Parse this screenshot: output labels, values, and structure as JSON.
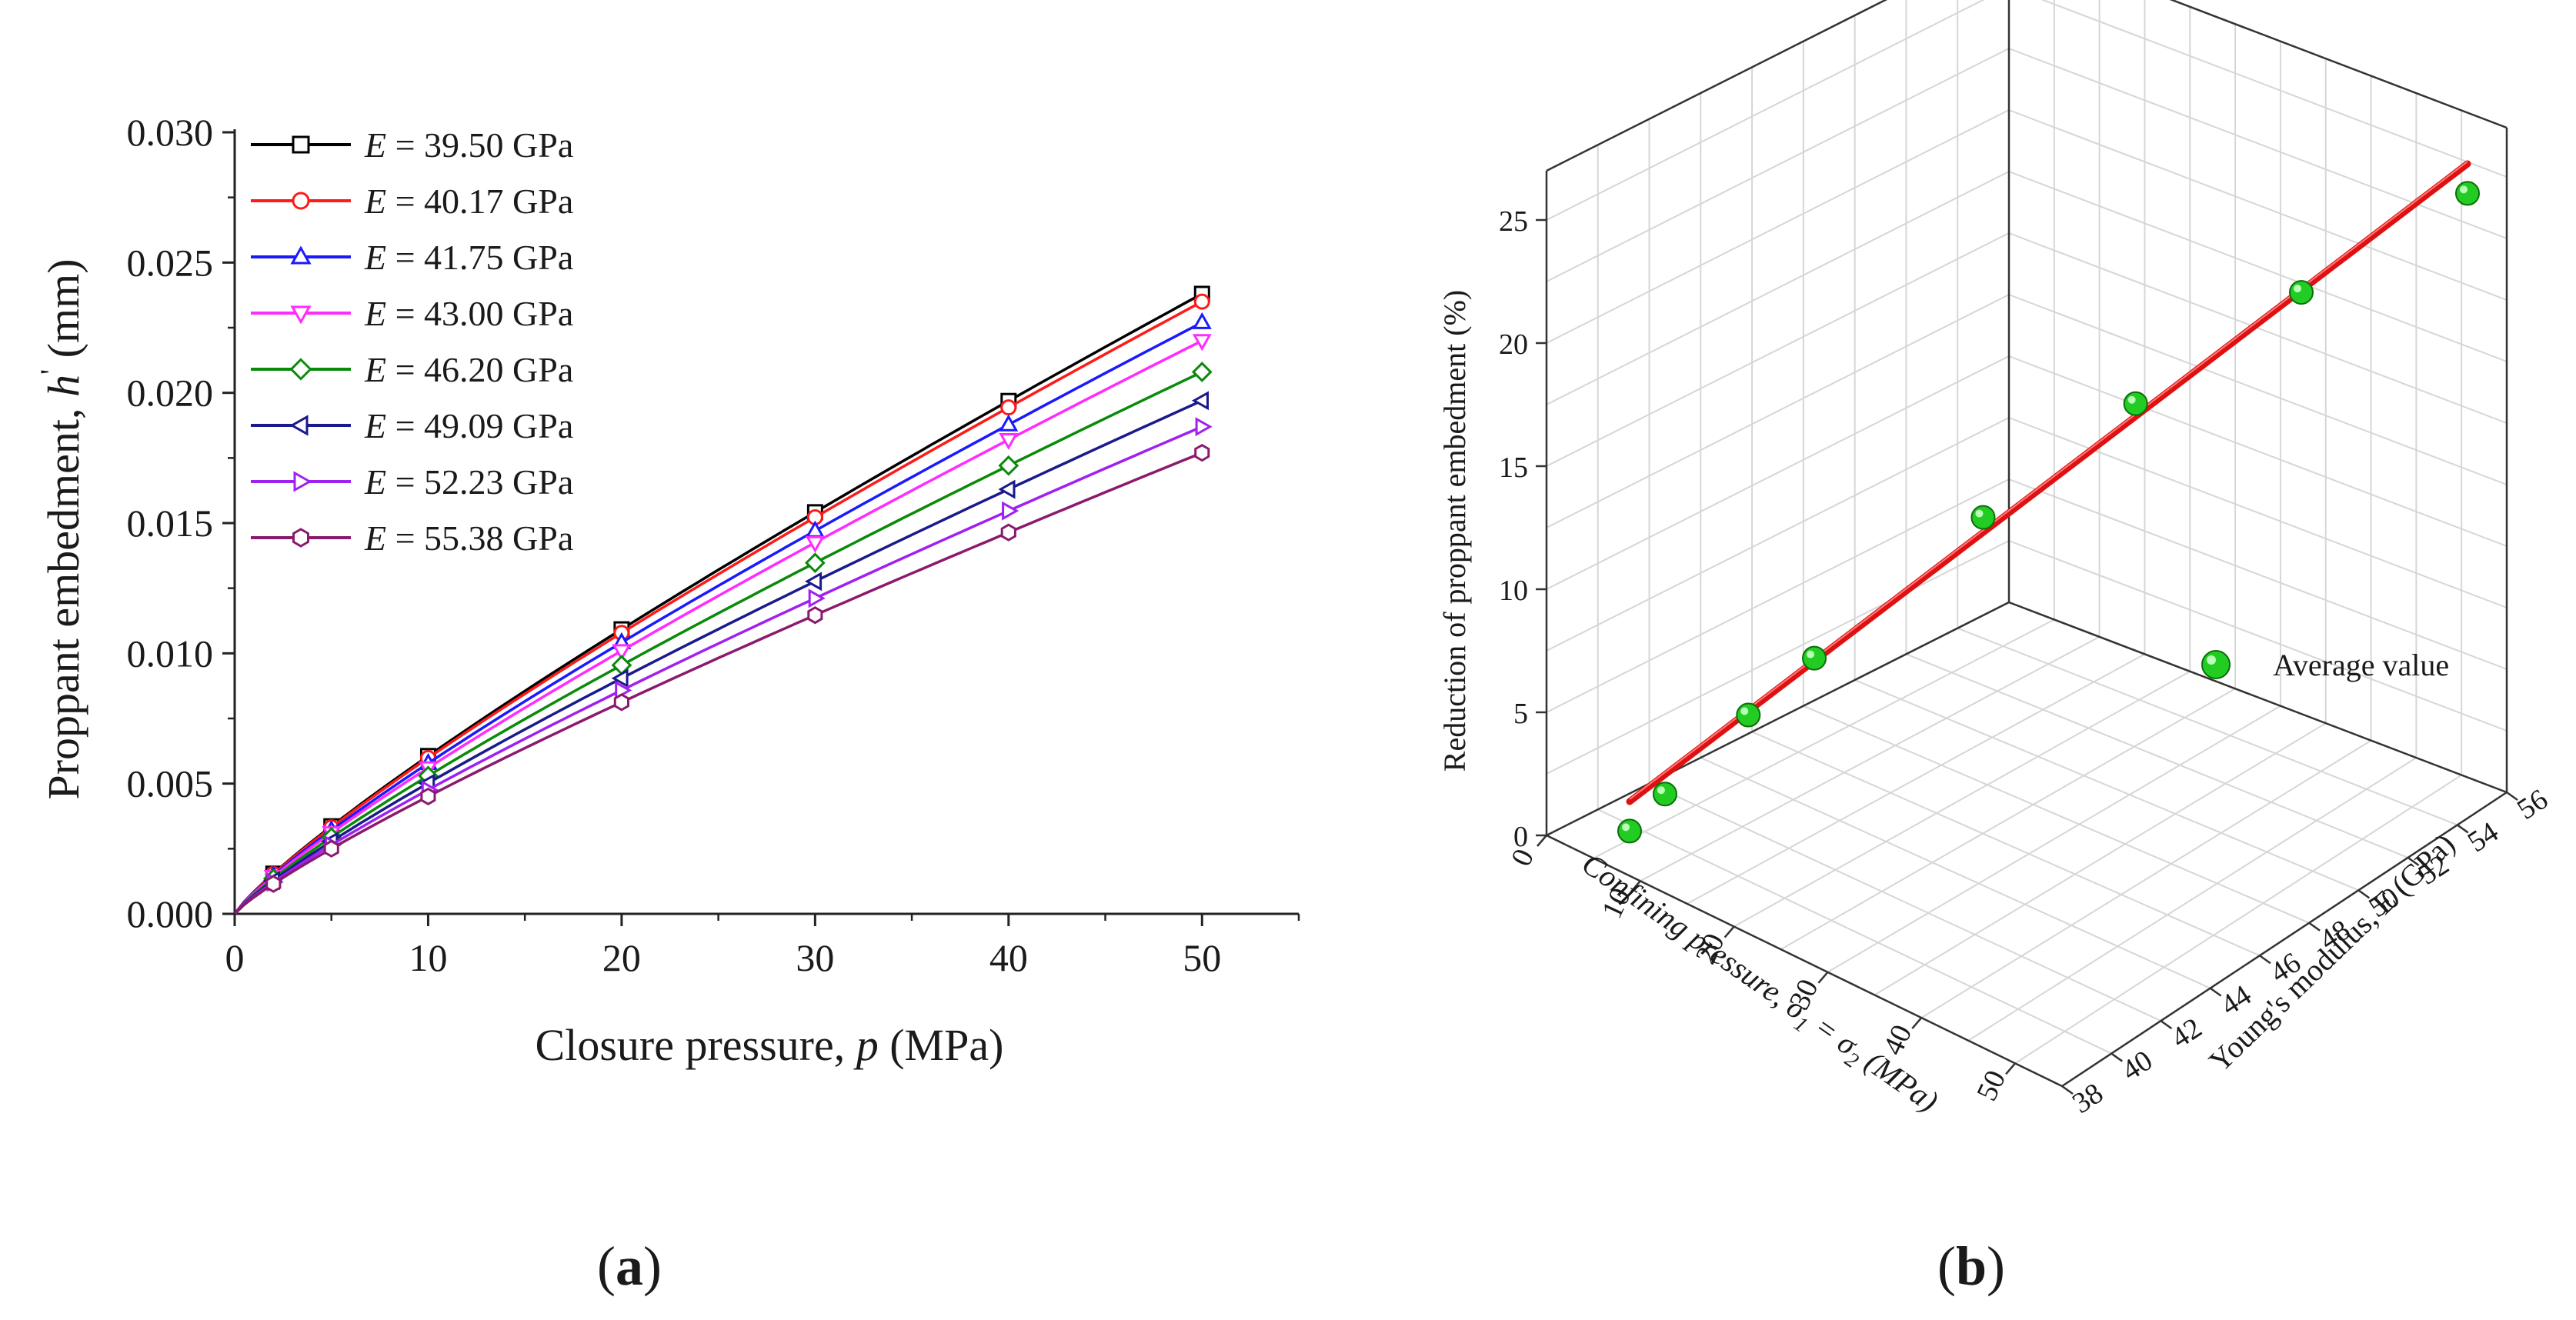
{
  "chart_data": [
    {
      "type": "line",
      "panel_label": "(a)",
      "panel_letter": "a",
      "xlabel": "Closure pressure, p (MPa)",
      "xlabel_parts": {
        "prefix": "Closure pressure, ",
        "var": "p",
        "suffix": " (MPa)"
      },
      "ylabel": "Proppant embedment, h' (mm)",
      "ylabel_parts": {
        "prefix": "Proppant embedment, ",
        "var": "h",
        "prime": "'",
        "suffix": " (mm)"
      },
      "xlim": [
        0,
        55
      ],
      "ylim": [
        0,
        0.03
      ],
      "xticks": [
        "0",
        "10",
        "20",
        "30",
        "40",
        "50"
      ],
      "yticks": [
        "0.000",
        "0.005",
        "0.010",
        "0.015",
        "0.020",
        "0.025",
        "0.030"
      ],
      "legend_position": "top-left",
      "marker_x": [
        2,
        5,
        10,
        20,
        30,
        40,
        50
      ],
      "series": [
        {
          "name": "E = 39.50 GPa",
          "var": "E",
          "rest": " = 39.50 GPa",
          "color": "#000000",
          "marker": "square",
          "y50": 0.0238
        },
        {
          "name": "E = 40.17 GPa",
          "var": "E",
          "rest": " = 40.17 GPa",
          "color": "#ff1a1a",
          "marker": "circle",
          "y50": 0.0235
        },
        {
          "name": "E = 41.75 GPa",
          "var": "E",
          "rest": " = 41.75 GPa",
          "color": "#1a1aff",
          "marker": "triangle-up",
          "y50": 0.0227
        },
        {
          "name": "E = 43.00 GPa",
          "var": "E",
          "rest": " = 43.00 GPa",
          "color": "#ff2bff",
          "marker": "triangle-down",
          "y50": 0.022
        },
        {
          "name": "E = 46.20 GPa",
          "var": "E",
          "rest": " = 46.20 GPa",
          "color": "#0a8a0a",
          "marker": "diamond",
          "y50": 0.0208
        },
        {
          "name": "E = 49.09 GPa",
          "var": "E",
          "rest": " = 49.09 GPa",
          "color": "#1a1a8c",
          "marker": "triangle-left",
          "y50": 0.0197
        },
        {
          "name": "E = 52.23 GPa",
          "var": "E",
          "rest": " = 52.23 GPa",
          "color": "#a020f0",
          "marker": "triangle-right",
          "y50": 0.0187
        },
        {
          "name": "E = 55.38 GPa",
          "var": "E",
          "rest": " = 55.38 GPa",
          "color": "#8b1a6e",
          "marker": "hexagon",
          "y50": 0.0177
        }
      ]
    },
    {
      "type": "scatter3d",
      "panel_label": "(b)",
      "panel_letter": "b",
      "zlabel": "Reduction of proppant embedment (%)",
      "xlabel_parts": {
        "prefix": "Confining pressure, ",
        "s1": "σ",
        "n1": "1",
        "eq": " = ",
        "s2": "σ",
        "n2": "2",
        "suffix": "  (MPa)"
      },
      "ylabel": "Young's modulus, E (GPa)",
      "xticks": [
        "0",
        "10",
        "20",
        "30",
        "40",
        "50"
      ],
      "yticks": [
        "38",
        "40",
        "42",
        "44",
        "46",
        "48",
        "50",
        "52",
        "54",
        "56"
      ],
      "zticks": [
        "0",
        "5",
        "10",
        "15",
        "20",
        "25"
      ],
      "zlim": [
        0,
        27
      ],
      "legend_label": "Average value",
      "legend_position": "right",
      "point_color": "#22cc22",
      "line_color": "#dd1111",
      "points": [
        {
          "x": 50,
          "y": 39.5,
          "z": 0.5
        },
        {
          "x": 50,
          "y": 40.17,
          "z": 2.0
        },
        {
          "x": 50,
          "y": 41.75,
          "z": 5.2
        },
        {
          "x": 50,
          "y": 43.0,
          "z": 7.5
        },
        {
          "x": 50,
          "y": 46.2,
          "z": 13.2
        },
        {
          "x": 50,
          "y": 49.09,
          "z": 17.8
        },
        {
          "x": 50,
          "y": 52.23,
          "z": 22.3
        },
        {
          "x": 50,
          "y": 55.38,
          "z": 26.3
        }
      ],
      "fit_line": {
        "z_start": 1.7,
        "z_end": 27.5
      }
    }
  ]
}
